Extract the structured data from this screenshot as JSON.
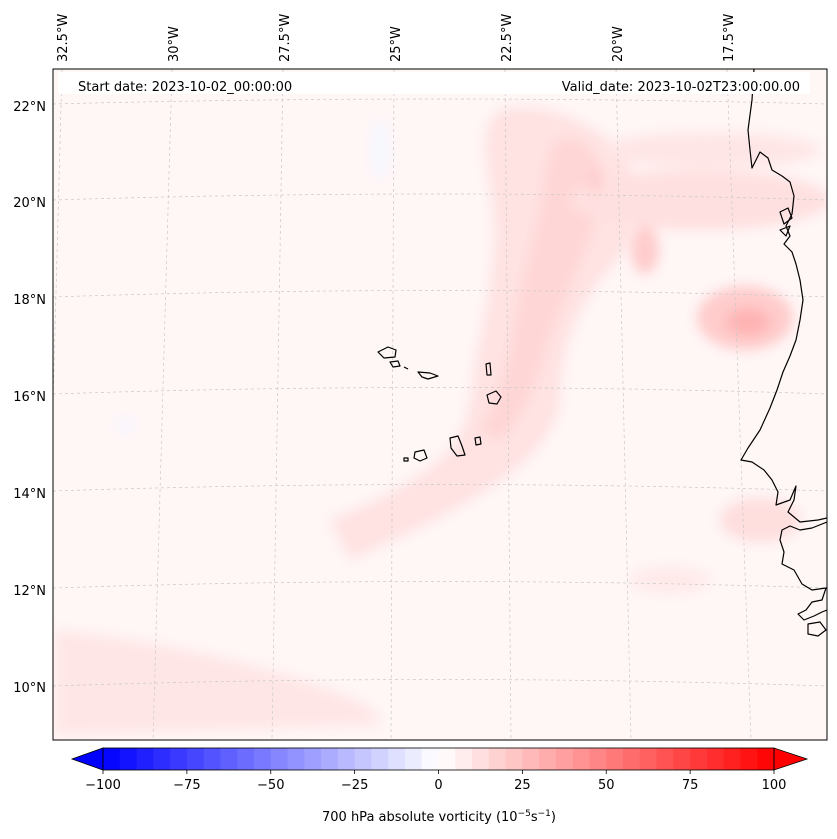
{
  "header": {
    "start_date": "Start date: 2023-10-02_00:00:00",
    "valid_date": "Valid_date: 2023-10-02T23:00:00.00"
  },
  "map": {
    "lon_labels": [
      "32.5°W",
      "30°W",
      "27.5°W",
      "25°W",
      "22.5°W",
      "20°W",
      "17.5°W"
    ],
    "lat_labels": [
      "22°N",
      "20°N",
      "18°N",
      "16°N",
      "14°N",
      "12°N",
      "10°N"
    ],
    "colors": {
      "frame": "#000000",
      "grid": "#c8c8c8",
      "coast": "#000000",
      "background_field": "#fff6f6"
    }
  },
  "colorbar": {
    "label_prefix": "700 hPa absolute vorticity (10",
    "label_exp1": "−5",
    "label_mid": "s",
    "label_exp2": "−1",
    "label_suffix": ")",
    "ticks": [
      "−100",
      "−75",
      "−50",
      "−25",
      "0",
      "25",
      "50",
      "75",
      "100"
    ],
    "tick_values": [
      -100,
      -75,
      -50,
      -25,
      0,
      25,
      50,
      75,
      100
    ],
    "levels": [
      -100,
      -95,
      -90,
      -85,
      -80,
      -75,
      -70,
      -65,
      -60,
      -55,
      -50,
      -45,
      -40,
      -35,
      -30,
      -25,
      -20,
      -15,
      -10,
      -5,
      0,
      5,
      10,
      15,
      20,
      25,
      30,
      35,
      40,
      45,
      50,
      55,
      60,
      65,
      70,
      75,
      80,
      85,
      90,
      95,
      100
    ],
    "colors": {
      "min": "#0000ff",
      "mid": "#ffffff",
      "max": "#ff0000"
    }
  }
}
